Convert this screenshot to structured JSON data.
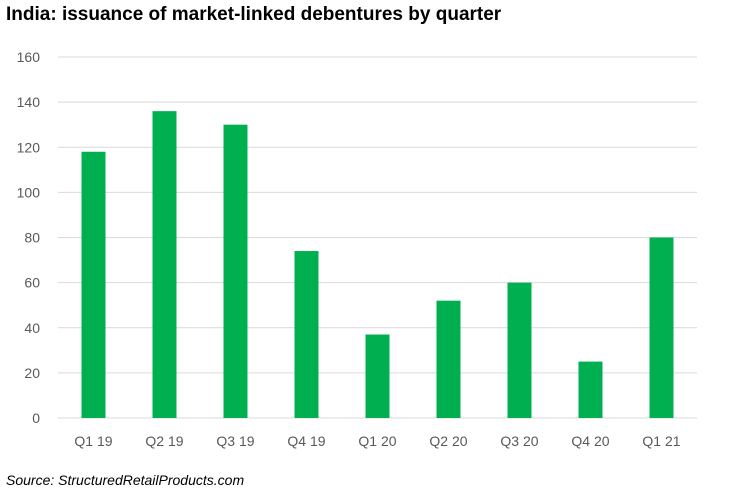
{
  "title": "India: issuance of market-linked debentures by quarter",
  "source": "Source: StructuredRetailProducts.com",
  "chart_data": {
    "type": "bar",
    "categories": [
      "Q1 19",
      "Q2 19",
      "Q3 19",
      "Q4 19",
      "Q1 20",
      "Q2 20",
      "Q3 20",
      "Q4 20",
      "Q1 21"
    ],
    "values": [
      118,
      136,
      130,
      74,
      37,
      52,
      60,
      25,
      80
    ],
    "title": "India: issuance of market-linked debentures by quarter",
    "xlabel": "",
    "ylabel": "",
    "ylim": [
      0,
      160
    ],
    "yticks": [
      0,
      20,
      40,
      60,
      80,
      100,
      120,
      140,
      160
    ],
    "grid": true,
    "legend": "none",
    "bar_color": "#00b050",
    "grid_color": "#d9d9d9"
  }
}
